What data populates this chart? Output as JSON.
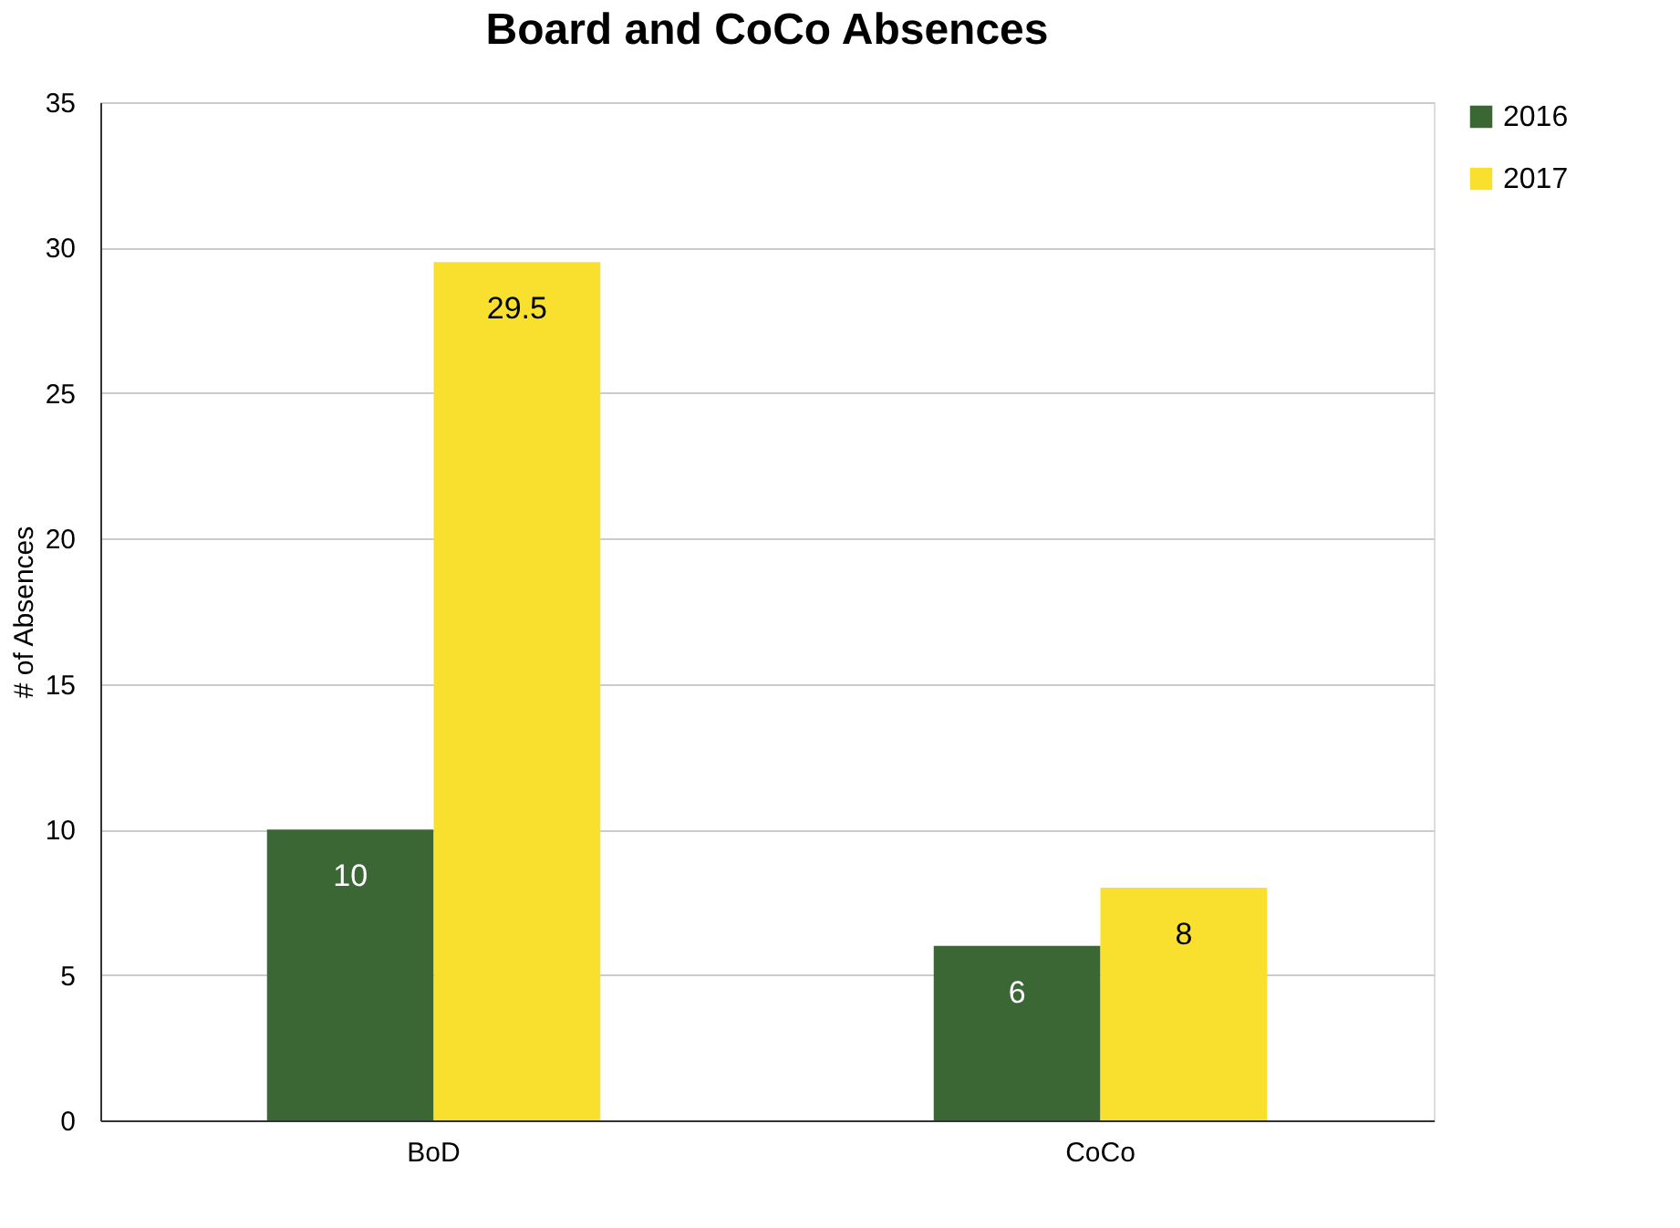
{
  "chart_data": {
    "type": "bar",
    "title": "Board and CoCo Absences",
    "ylabel": "# of Absences",
    "categories": [
      "BoD",
      "CoCo"
    ],
    "series": [
      {
        "name": "2016",
        "color": "#3a6734",
        "values": [
          10,
          6
        ]
      },
      {
        "name": "2017",
        "color": "#f9e02e",
        "values": [
          29.5,
          8
        ]
      }
    ],
    "ylim": [
      0,
      35
    ],
    "yticks": [
      0,
      5,
      10,
      15,
      20,
      25,
      30,
      35
    ],
    "grid": "y",
    "legend": "right",
    "data_labels": true
  }
}
